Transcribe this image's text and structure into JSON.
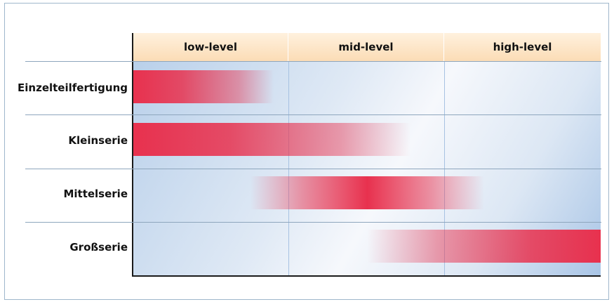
{
  "columns": [
    "low-level",
    "mid-level",
    "high-level"
  ],
  "rows": [
    "Einzelteilfertigung",
    "Kleinserie",
    "Mittelserie",
    "Großserie"
  ],
  "colors": {
    "bar": "#e8314e",
    "header_top": "#fff1de",
    "header_bottom": "#fbdcb6",
    "grid_line": "#a7c2e2",
    "axis": "#1a1a1a"
  },
  "ranges": [
    {
      "row": "Einzelteilfertigung",
      "start": 0.0,
      "end": 0.9,
      "peak": 0.0
    },
    {
      "row": "Kleinserie",
      "start": 0.0,
      "end": 1.78,
      "peak": 0.0
    },
    {
      "row": "Mittelserie",
      "start": 0.75,
      "end": 2.25,
      "peak": 1.5
    },
    {
      "row": "Großserie",
      "start": 1.5,
      "end": 3.0,
      "peak": 3.0
    }
  ]
}
